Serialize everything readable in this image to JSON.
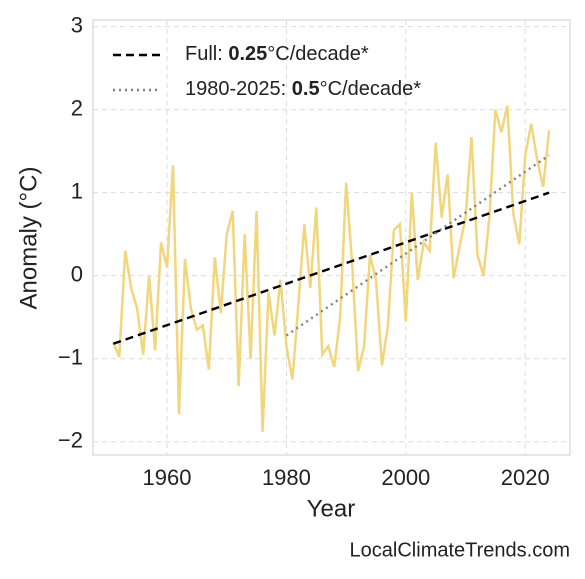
{
  "chart_data": {
    "type": "line",
    "x_label": "Year",
    "y_label": "Anomaly (°C)",
    "watermark": "LocalClimateTrends.com",
    "xlim": [
      1947.6,
      2027.5
    ],
    "ylim": [
      -2.16,
      3.08
    ],
    "xticks": [
      1960,
      1980,
      2000,
      2020
    ],
    "yticks": [
      {
        "value": -2,
        "label": "−2"
      },
      {
        "value": -1,
        "label": "−1"
      },
      0,
      1,
      2,
      3
    ],
    "grid": true,
    "legend": "upper left",
    "series": [
      {
        "color": "#f2d67c",
        "style": "solid",
        "x": [
          1951,
          1952,
          1953,
          1954,
          1955,
          1956,
          1957,
          1958,
          1959,
          1960,
          1961,
          1962,
          1963,
          1964,
          1965,
          1966,
          1967,
          1968,
          1969,
          1970,
          1971,
          1972,
          1973,
          1974,
          1975,
          1976,
          1977,
          1978,
          1979,
          1980,
          1981,
          1982,
          1983,
          1984,
          1985,
          1986,
          1987,
          1988,
          1989,
          1990,
          1991,
          1992,
          1993,
          1994,
          1995,
          1996,
          1997,
          1998,
          1999,
          2000,
          2001,
          2002,
          2003,
          2004,
          2005,
          2006,
          2007,
          2008,
          2009,
          2010,
          2011,
          2012,
          2013,
          2014,
          2015,
          2016,
          2017,
          2018,
          2019,
          2020,
          2021,
          2022,
          2023,
          2024
        ],
        "values": [
          -0.8,
          -0.98,
          0.3,
          -0.15,
          -0.4,
          -0.95,
          0.0,
          -0.9,
          0.4,
          0.1,
          1.33,
          -1.67,
          0.2,
          -0.4,
          -0.65,
          -0.6,
          -1.13,
          0.22,
          -0.45,
          0.5,
          0.78,
          -1.33,
          0.5,
          -1.0,
          0.78,
          -1.88,
          -0.2,
          -0.72,
          -0.05,
          -0.85,
          -1.25,
          -0.35,
          0.62,
          -0.15,
          0.82,
          -0.95,
          -0.85,
          -1.1,
          -0.5,
          1.12,
          0.15,
          -1.15,
          -0.85,
          0.25,
          -0.05,
          -1.08,
          -0.6,
          0.55,
          0.62,
          -0.55,
          1.0,
          -0.05,
          0.4,
          0.3,
          1.6,
          0.7,
          1.22,
          -0.03,
          0.35,
          0.7,
          1.67,
          0.25,
          0.0,
          0.7,
          2.0,
          1.73,
          2.05,
          0.75,
          0.38,
          1.45,
          1.83,
          1.4,
          1.07,
          1.75
        ]
      },
      {
        "name": [
          "Full: ",
          "0.25",
          "°C/decade*"
        ],
        "name_bold": 1,
        "color": "#000000",
        "style": "dashed",
        "x": [
          1951,
          2024
        ],
        "values": [
          -0.82,
          1.0
        ]
      },
      {
        "name": [
          "1980-2025: ",
          "0.5",
          "°C/decade*"
        ],
        "name_bold": 1,
        "color": "#808080",
        "style": "dotted",
        "x": [
          1980,
          2024
        ],
        "values": [
          -0.72,
          1.45
        ]
      }
    ]
  }
}
